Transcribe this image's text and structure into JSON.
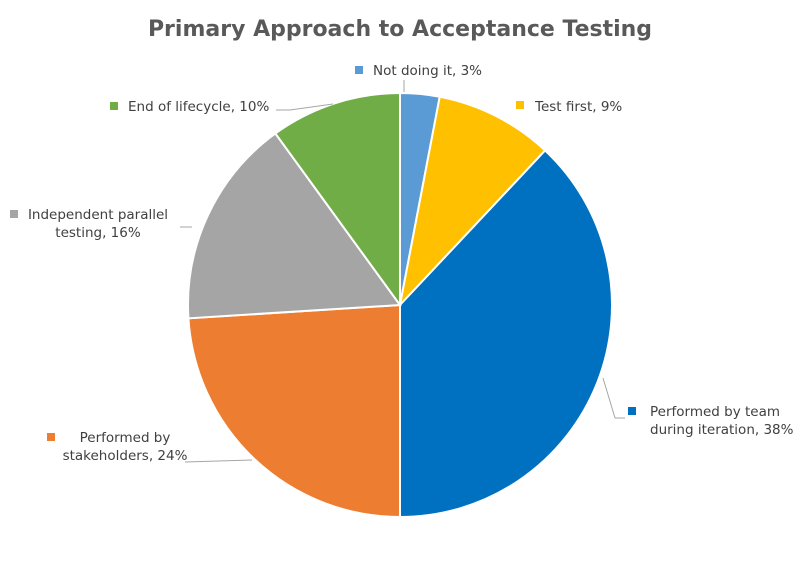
{
  "chart_data": {
    "type": "pie",
    "title": "Primary Approach to Acceptance Testing",
    "legend": "none",
    "slices": [
      {
        "label_lines": [
          "Not doing it, 3%"
        ],
        "value": 3,
        "color": "#5b9bd5"
      },
      {
        "label_lines": [
          "Test first, 9%"
        ],
        "value": 9,
        "color": "#ffc000"
      },
      {
        "label_lines": [
          "Performed by team",
          "during iteration, 38%"
        ],
        "value": 38,
        "color": "#0070c0"
      },
      {
        "label_lines": [
          "Performed by",
          "stakeholders, 24%"
        ],
        "value": 24,
        "color": "#ed7d31"
      },
      {
        "label_lines": [
          "Independent parallel",
          "testing, 16%"
        ],
        "value": 16,
        "color": "#a5a5a5"
      },
      {
        "label_lines": [
          "End of lifecycle, 10%"
        ],
        "value": 10,
        "color": "#70ad47"
      }
    ]
  }
}
